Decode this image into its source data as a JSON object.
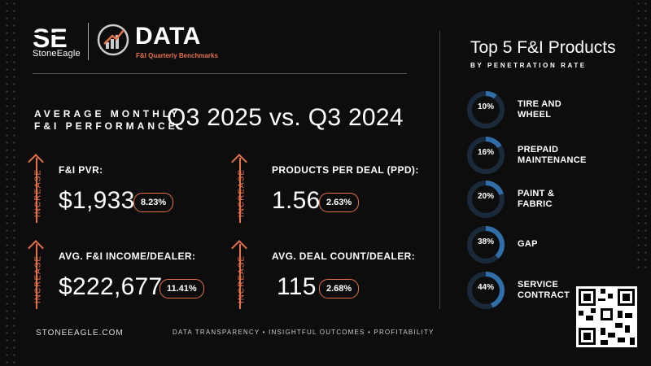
{
  "header": {
    "brand_name": "StoneEagle",
    "brand_mark": "SE",
    "data_title": "DATA",
    "data_subtitle": "F&I Quarterly Benchmarks"
  },
  "headline": {
    "avg_line1": "AVERAGE MONTHLY",
    "avg_line2": "F&I PERFORMANCE",
    "period": "Q3 2025 vs. Q3 2024"
  },
  "metrics": [
    {
      "label": "F&I PVR:",
      "value": "$1,933",
      "change": "8.23%",
      "direction": "INCREASE"
    },
    {
      "label": "PRODUCTS PER DEAL (PPD):",
      "value": "1.56",
      "change": "2.63%",
      "direction": "INCREASE"
    },
    {
      "label": "AVG. F&I INCOME/DEALER:",
      "value": "$222,677",
      "change": "11.41%",
      "direction": "INCREASE"
    },
    {
      "label": "AVG. DEAL COUNT/DEALER:",
      "value": "115",
      "change": "2.68%",
      "direction": "INCREASE"
    }
  ],
  "products": {
    "title": "Top 5 F&I Products",
    "subtitle": "BY PENETRATION RATE",
    "items": [
      {
        "pct_label": "10%",
        "pct": 10,
        "line1": "TIRE AND",
        "line2": "WHEEL"
      },
      {
        "pct_label": "16%",
        "pct": 16,
        "line1": "PREPAID",
        "line2": "MAINTENANCE"
      },
      {
        "pct_label": "20%",
        "pct": 20,
        "line1": "PAINT &",
        "line2": "FABRIC"
      },
      {
        "pct_label": "38%",
        "pct": 38,
        "line1": "GAP",
        "line2": ""
      },
      {
        "pct_label": "44%",
        "pct": 44,
        "line1": "SERVICE",
        "line2": "CONTRACT"
      }
    ]
  },
  "footer": {
    "url": "STONEEAGLE.COM",
    "tagline": "DATA TRANSPARENCY • INSIGHTFUL OUTCOMES • PROFITABILITY"
  },
  "colors": {
    "accent": "#e8714a",
    "ring_fill": "#2f6ea8",
    "ring_track": "#1a2a3a",
    "background": "#0d0d0d"
  }
}
